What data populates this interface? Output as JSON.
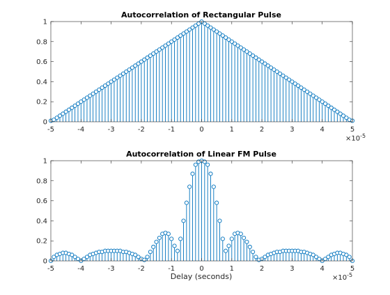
{
  "colors": {
    "series": "#0072bd",
    "axes": "#262626",
    "background": "#ffffff"
  },
  "chart_data": [
    {
      "type": "stem",
      "title": "Autocorrelation of Rectangular Pulse",
      "xlabel": "",
      "ylabel": "",
      "xlim": [
        -5,
        5
      ],
      "ylim": [
        0,
        1
      ],
      "x_exponent_label": "×10",
      "x_exponent_power": "-5",
      "x_ticks": [
        "-5",
        "-4",
        "-3",
        "-2",
        "-1",
        "0",
        "1",
        "2",
        "3",
        "4",
        "5"
      ],
      "y_ticks": [
        "0",
        "0.2",
        "0.4",
        "0.6",
        "0.8",
        "1"
      ],
      "grid": false,
      "x": [
        -5.0,
        -4.9,
        -4.8,
        -4.7,
        -4.6,
        -4.5,
        -4.4,
        -4.3,
        -4.2,
        -4.1,
        -4.0,
        -3.9,
        -3.8,
        -3.7,
        -3.6,
        -3.5,
        -3.4,
        -3.3,
        -3.2,
        -3.1,
        -3.0,
        -2.9,
        -2.8,
        -2.7,
        -2.6,
        -2.5,
        -2.4,
        -2.3,
        -2.2,
        -2.1,
        -2.0,
        -1.9,
        -1.8,
        -1.7,
        -1.6,
        -1.5,
        -1.4,
        -1.3,
        -1.2,
        -1.1,
        -1.0,
        -0.9,
        -0.8,
        -0.7,
        -0.6,
        -0.5,
        -0.4,
        -0.3,
        -0.2,
        -0.1,
        0.0,
        0.1,
        0.2,
        0.3,
        0.4,
        0.5,
        0.6,
        0.7,
        0.8,
        0.9,
        1.0,
        1.1,
        1.2,
        1.3,
        1.4,
        1.5,
        1.6,
        1.7,
        1.8,
        1.9,
        2.0,
        2.1,
        2.2,
        2.3,
        2.4,
        2.5,
        2.6,
        2.7,
        2.8,
        2.9,
        3.0,
        3.1,
        3.2,
        3.3,
        3.4,
        3.5,
        3.6,
        3.7,
        3.8,
        3.9,
        4.0,
        4.1,
        4.2,
        4.3,
        4.4,
        4.5,
        4.6,
        4.7,
        4.8,
        4.9,
        5.0
      ],
      "y": [
        0.01,
        0.02,
        0.04,
        0.06,
        0.08,
        0.1,
        0.12,
        0.14,
        0.16,
        0.18,
        0.2,
        0.22,
        0.24,
        0.26,
        0.28,
        0.3,
        0.32,
        0.34,
        0.36,
        0.38,
        0.4,
        0.42,
        0.44,
        0.46,
        0.48,
        0.5,
        0.52,
        0.54,
        0.56,
        0.58,
        0.6,
        0.62,
        0.64,
        0.66,
        0.68,
        0.7,
        0.72,
        0.74,
        0.76,
        0.78,
        0.8,
        0.82,
        0.84,
        0.86,
        0.88,
        0.9,
        0.92,
        0.94,
        0.96,
        0.98,
        1.0,
        0.98,
        0.96,
        0.94,
        0.92,
        0.9,
        0.88,
        0.86,
        0.84,
        0.82,
        0.8,
        0.78,
        0.76,
        0.74,
        0.72,
        0.7,
        0.68,
        0.66,
        0.64,
        0.62,
        0.6,
        0.58,
        0.56,
        0.54,
        0.52,
        0.5,
        0.48,
        0.46,
        0.44,
        0.42,
        0.4,
        0.38,
        0.36,
        0.34,
        0.32,
        0.3,
        0.28,
        0.26,
        0.24,
        0.22,
        0.2,
        0.18,
        0.16,
        0.14,
        0.12,
        0.1,
        0.08,
        0.06,
        0.04,
        0.02,
        0.01
      ]
    },
    {
      "type": "stem",
      "title": "Autocorrelation of Linear FM Pulse",
      "xlabel": "Delay (seconds)",
      "ylabel": "",
      "xlim": [
        -5,
        5
      ],
      "ylim": [
        0,
        1
      ],
      "x_exponent_label": "×10",
      "x_exponent_power": "-5",
      "x_ticks": [
        "-5",
        "-4",
        "-3",
        "-2",
        "-1",
        "0",
        "1",
        "2",
        "3",
        "4",
        "5"
      ],
      "y_ticks": [
        "0",
        "0.2",
        "0.4",
        "0.6",
        "0.8",
        "1"
      ],
      "grid": false,
      "x": [
        -5.0,
        -4.9,
        -4.8,
        -4.7,
        -4.6,
        -4.5,
        -4.4,
        -4.3,
        -4.2,
        -4.1,
        -4.0,
        -3.9,
        -3.8,
        -3.7,
        -3.6,
        -3.5,
        -3.4,
        -3.3,
        -3.2,
        -3.1,
        -3.0,
        -2.9,
        -2.8,
        -2.7,
        -2.6,
        -2.5,
        -2.4,
        -2.3,
        -2.2,
        -2.1,
        -2.0,
        -1.9,
        -1.8,
        -1.7,
        -1.6,
        -1.5,
        -1.4,
        -1.3,
        -1.2,
        -1.1,
        -1.0,
        -0.9,
        -0.8,
        -0.7,
        -0.6,
        -0.5,
        -0.4,
        -0.3,
        -0.2,
        -0.1,
        0.0,
        0.1,
        0.2,
        0.3,
        0.4,
        0.5,
        0.6,
        0.7,
        0.8,
        0.9,
        1.0,
        1.1,
        1.2,
        1.3,
        1.4,
        1.5,
        1.6,
        1.7,
        1.8,
        1.9,
        2.0,
        2.1,
        2.2,
        2.3,
        2.4,
        2.5,
        2.6,
        2.7,
        2.8,
        2.9,
        3.0,
        3.1,
        3.2,
        3.3,
        3.4,
        3.5,
        3.6,
        3.7,
        3.8,
        3.9,
        4.0,
        4.1,
        4.2,
        4.3,
        4.4,
        4.5,
        4.6,
        4.7,
        4.8,
        4.9,
        5.0
      ],
      "y": [
        0.0,
        0.04,
        0.06,
        0.07,
        0.08,
        0.08,
        0.07,
        0.06,
        0.04,
        0.02,
        0.0,
        0.02,
        0.04,
        0.06,
        0.07,
        0.08,
        0.09,
        0.09,
        0.1,
        0.1,
        0.1,
        0.1,
        0.1,
        0.1,
        0.09,
        0.09,
        0.08,
        0.07,
        0.06,
        0.04,
        0.02,
        0.01,
        0.04,
        0.09,
        0.14,
        0.19,
        0.23,
        0.27,
        0.28,
        0.27,
        0.22,
        0.15,
        0.1,
        0.22,
        0.4,
        0.58,
        0.74,
        0.87,
        0.96,
        0.99,
        1.0,
        0.99,
        0.96,
        0.87,
        0.74,
        0.58,
        0.4,
        0.22,
        0.1,
        0.15,
        0.22,
        0.27,
        0.28,
        0.27,
        0.23,
        0.19,
        0.14,
        0.09,
        0.04,
        0.01,
        0.02,
        0.04,
        0.06,
        0.07,
        0.08,
        0.09,
        0.09,
        0.1,
        0.1,
        0.1,
        0.1,
        0.1,
        0.1,
        0.09,
        0.09,
        0.08,
        0.07,
        0.06,
        0.04,
        0.02,
        0.0,
        0.02,
        0.04,
        0.06,
        0.07,
        0.08,
        0.08,
        0.07,
        0.06,
        0.04,
        0.0
      ]
    }
  ]
}
